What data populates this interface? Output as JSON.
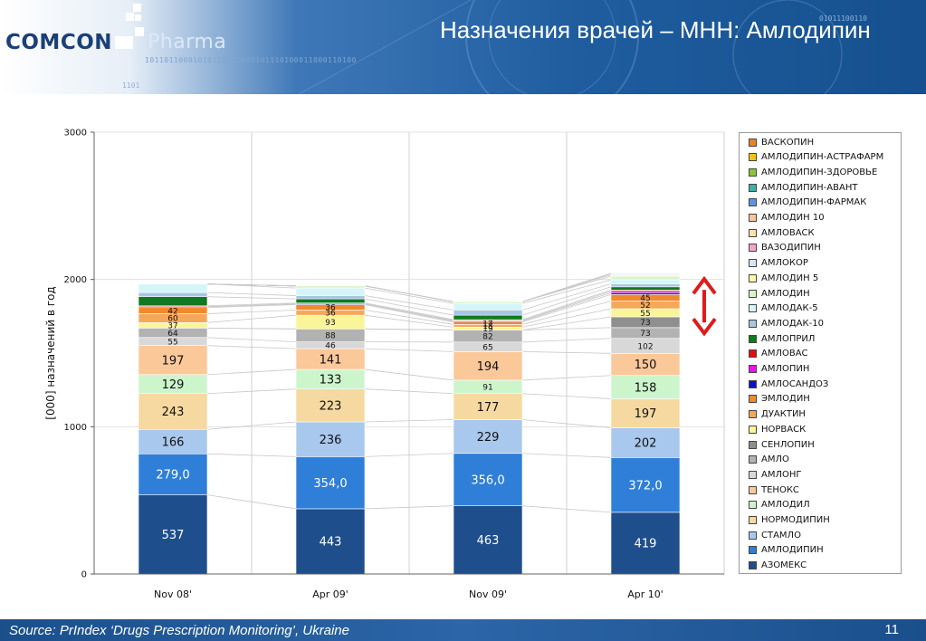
{
  "header": {
    "logo_brand": "COMCON",
    "logo_product": "Pharma",
    "title": "Назначения врачей – МНН: Амлодипин",
    "binary_strip": "10110110001010110011000101110100011000110100",
    "binary_top": "01011100110",
    "binary_small": "1101"
  },
  "footer": {
    "source": "Source:  PrIndex  ‘Drugs Prescription Monitoring’, Ukraine",
    "page_number": "11"
  },
  "colors": {
    "header_bg": "#1f5d9f",
    "arrow": "#e01b1b",
    "connector": "#c8c8c8"
  },
  "chart_data": {
    "type": "bar",
    "stacked": true,
    "title": "",
    "xlabel": "",
    "ylabel": "[000] назначений в год",
    "ylim": [
      0,
      3000
    ],
    "yticks": [
      0,
      1000,
      2000,
      3000
    ],
    "grid": true,
    "legend_position": "right",
    "categories": [
      "Nov 08'",
      "Apr 09'",
      "Nov 09'",
      "Apr 10'"
    ],
    "series": [
      {
        "name": "АЗОМЕКС",
        "color": "#1f4e8c",
        "values": [
          537,
          443,
          463,
          419
        ],
        "labels": [
          "537",
          "443",
          "463",
          "419"
        ],
        "label_color": "#ffffff"
      },
      {
        "name": "АМЛОДИПИН",
        "color": "#2f7fd8",
        "values": [
          279,
          354,
          356,
          372
        ],
        "labels": [
          "279,0",
          "354,0",
          "356,0",
          "372,0"
        ],
        "label_color": "#ffffff"
      },
      {
        "name": "СТАМЛО",
        "color": "#a8c8ee",
        "values": [
          166,
          236,
          229,
          202
        ],
        "labels": [
          "166",
          "236",
          "229",
          "202"
        ],
        "label_color": "#111111"
      },
      {
        "name": "НОРМОДИПИН",
        "color": "#f5d9a0",
        "values": [
          243,
          223,
          177,
          197
        ],
        "labels": [
          "243",
          "223",
          "177",
          "197"
        ],
        "label_color": "#111111"
      },
      {
        "name": "АМЛОДИЛ",
        "color": "#ccf5cc",
        "values": [
          129,
          133,
          91,
          158
        ],
        "labels": [
          "129",
          "133",
          "91",
          "158"
        ],
        "label_color": "#111111"
      },
      {
        "name": "ТЕНОКС",
        "color": "#fbc89a",
        "values": [
          197,
          141,
          194,
          150
        ],
        "labels": [
          "197",
          "141",
          "194",
          "150"
        ],
        "label_color": "#111111"
      },
      {
        "name": "АМЛОНГ",
        "color": "#d8d8d8",
        "values": [
          55,
          46,
          65,
          102
        ],
        "labels": [
          "55",
          "46",
          "65",
          "102"
        ],
        "label_color": "#111111"
      },
      {
        "name": "АМЛО",
        "color": "#b2b2b2",
        "values": [
          64,
          88,
          82,
          73
        ],
        "labels": [
          "64",
          "88",
          "82",
          "73"
        ],
        "label_color": "#111111"
      },
      {
        "name": "СЕНЛОПИН",
        "color": "#8f8f8f",
        "values": [
          0,
          0,
          0,
          73
        ],
        "labels": [
          "",
          "",
          "",
          "73"
        ],
        "label_color": "#111111"
      },
      {
        "name": "НОРВАСК",
        "color": "#fbf59a",
        "values": [
          37,
          93,
          19,
          55
        ],
        "labels": [
          "37",
          "93",
          "19",
          "55"
        ],
        "label_color": "#111111"
      },
      {
        "name": "ДУАКТИН",
        "color": "#f6a85a",
        "values": [
          60,
          36,
          18,
          52
        ],
        "labels": [
          "60",
          "36",
          "18",
          "52"
        ],
        "label_color": "#111111"
      },
      {
        "name": "ЭМЛОДИН",
        "color": "#ef8a2e",
        "values": [
          42,
          36,
          17,
          45
        ],
        "labels": [
          "42",
          "36",
          "17",
          "45"
        ],
        "label_color": "#111111"
      },
      {
        "name": "АМЛОСАНДОЗ",
        "color": "#1010c8",
        "values": [
          6,
          5,
          6,
          12
        ],
        "labels": [
          "",
          "",
          "",
          ""
        ],
        "label_color": "#111111"
      },
      {
        "name": "АМЛОПИН",
        "color": "#ee10ee",
        "values": [
          0,
          0,
          4,
          10
        ],
        "labels": [
          "",
          "",
          "",
          ""
        ],
        "label_color": "#111111"
      },
      {
        "name": "АМЛОВАС",
        "color": "#e01010",
        "values": [
          6,
          6,
          6,
          8
        ],
        "labels": [
          "",
          "",
          "",
          ""
        ],
        "label_color": "#111111"
      },
      {
        "name": "АМЛОПРИЛ",
        "color": "#0f7a1e",
        "values": [
          62,
          28,
          30,
          22
        ],
        "labels": [
          "",
          "",
          "",
          ""
        ],
        "label_color": "#111111"
      },
      {
        "name": "АМЛОДАК-10",
        "color": "#a9c6e0",
        "values": [
          28,
          22,
          36,
          20
        ],
        "labels": [
          "",
          "",
          "",
          ""
        ],
        "label_color": "#111111"
      },
      {
        "name": "АМЛОДАК-5",
        "color": "#d4f6f8",
        "values": [
          58,
          52,
          44,
          28
        ],
        "labels": [
          "",
          "",
          "",
          ""
        ],
        "label_color": "#111111"
      },
      {
        "name": "АМЛОДИН",
        "color": "#d8f5c8",
        "values": [
          0,
          14,
          12,
          24
        ],
        "labels": [
          "",
          "",
          "",
          ""
        ],
        "label_color": "#111111"
      },
      {
        "name": "АМЛОДИН 5",
        "color": "#fbfba8",
        "values": [
          0,
          0,
          0,
          10
        ],
        "labels": [
          "",
          "",
          "",
          ""
        ],
        "label_color": "#111111"
      },
      {
        "name": "АМЛОКОР",
        "color": "#d4e6f8",
        "values": [
          0,
          0,
          0,
          8
        ],
        "labels": [
          "",
          "",
          "",
          ""
        ],
        "label_color": "#111111"
      },
      {
        "name": "ВАЗОДИПИН",
        "color": "#f7a3c8",
        "values": [
          0,
          0,
          0,
          0
        ],
        "labels": [
          "",
          "",
          "",
          ""
        ],
        "label_color": "#111111"
      },
      {
        "name": "АМЛОВАСК",
        "color": "#fde0a8",
        "values": [
          0,
          0,
          0,
          0
        ],
        "labels": [
          "",
          "",
          "",
          ""
        ],
        "label_color": "#111111"
      },
      {
        "name": "АМЛОДИН 10",
        "color": "#fbc59a",
        "values": [
          0,
          0,
          0,
          0
        ],
        "labels": [
          "",
          "",
          "",
          ""
        ],
        "label_color": "#111111"
      },
      {
        "name": "АМЛОДИПИН-ФАРМАК",
        "color": "#5b95dc",
        "values": [
          0,
          0,
          0,
          0
        ],
        "labels": [
          "",
          "",
          "",
          ""
        ],
        "label_color": "#111111"
      },
      {
        "name": "АМЛОДИПИН-АВАНТ",
        "color": "#3fb0a8",
        "values": [
          0,
          0,
          0,
          0
        ],
        "labels": [
          "",
          "",
          "",
          ""
        ],
        "label_color": "#111111"
      },
      {
        "name": "АМЛОДИПИН-ЗДОРОВЬЕ",
        "color": "#8bc43a",
        "values": [
          0,
          0,
          0,
          0
        ],
        "labels": [
          "",
          "",
          "",
          ""
        ],
        "label_color": "#111111"
      },
      {
        "name": "АМЛОДИПИН-АСТРАФАРМ",
        "color": "#f5c21a",
        "values": [
          0,
          0,
          0,
          0
        ],
        "labels": [
          "",
          "",
          "",
          ""
        ],
        "label_color": "#111111"
      },
      {
        "name": "ВАСКОПИН",
        "color": "#e8832a",
        "values": [
          0,
          0,
          0,
          0
        ],
        "labels": [
          "",
          "",
          "",
          ""
        ],
        "label_color": "#111111"
      }
    ],
    "annotations": [
      {
        "type": "double-arrow",
        "category": "Apr 10'",
        "color": "#e01b1b"
      }
    ]
  }
}
